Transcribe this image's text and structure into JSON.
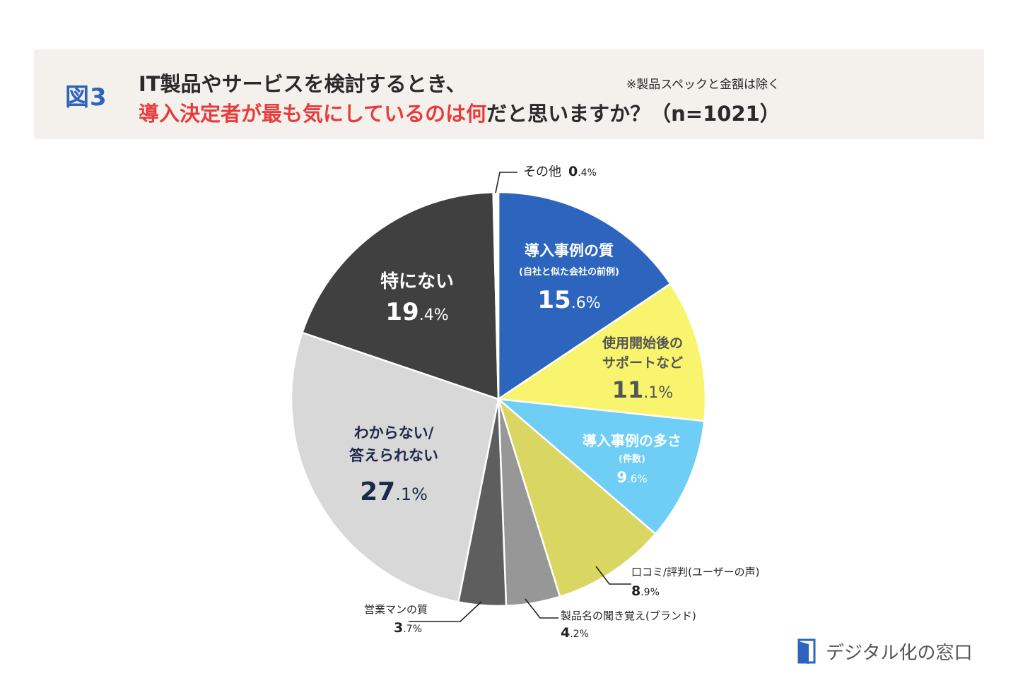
{
  "header": {
    "figure_label": "図3",
    "title_line1": "IT製品やサービスを検討するとき、",
    "title_line2_accent": "導入決定者が最も気にしているのは何",
    "title_line2_rest": "だと思いますか？（n=1021）",
    "note": "※製品スペックと金額は除く"
  },
  "logo": {
    "text": "デジタル化の窓口"
  },
  "chart_data": {
    "type": "pie",
    "title": "",
    "n": 1021,
    "unit": "%",
    "slices": [
      {
        "label": [
          "導入事例の質"
        ],
        "sublabel": "(自社と似た会社の前例)",
        "value": 15.6,
        "color": "#2d64bd",
        "text_color": "#ffffff"
      },
      {
        "label": [
          "使用開始後の",
          "サポートなど"
        ],
        "value": 11.1,
        "color": "#f8f46e",
        "text_color": "#555555"
      },
      {
        "label": [
          "導入事例の多さ"
        ],
        "sublabel": "(件数)",
        "value": 9.6,
        "color": "#6ecef6",
        "text_color": "#ffffff"
      },
      {
        "label": [
          "口コミ/評判(ユーザーの声)"
        ],
        "value": 8.9,
        "color": "#dad662",
        "text_color": "#222222"
      },
      {
        "label": [
          "製品名の聞き覚え(ブランド)"
        ],
        "value": 4.2,
        "color": "#979797",
        "text_color": "#222222"
      },
      {
        "label": [
          "営業マンの質"
        ],
        "value": 3.7,
        "color": "#5e5e5e",
        "text_color": "#222222"
      },
      {
        "label": [
          "わからない/",
          "答えられない"
        ],
        "value": 27.1,
        "color": "#d8d8d8",
        "text_color": "#1c2a4a"
      },
      {
        "label": [
          "特にない"
        ],
        "value": 19.4,
        "color": "#404040",
        "text_color": "#ffffff"
      },
      {
        "label": [
          "その他"
        ],
        "value": 0.4,
        "color": "#ffffff",
        "text_color": "#222222"
      }
    ]
  }
}
